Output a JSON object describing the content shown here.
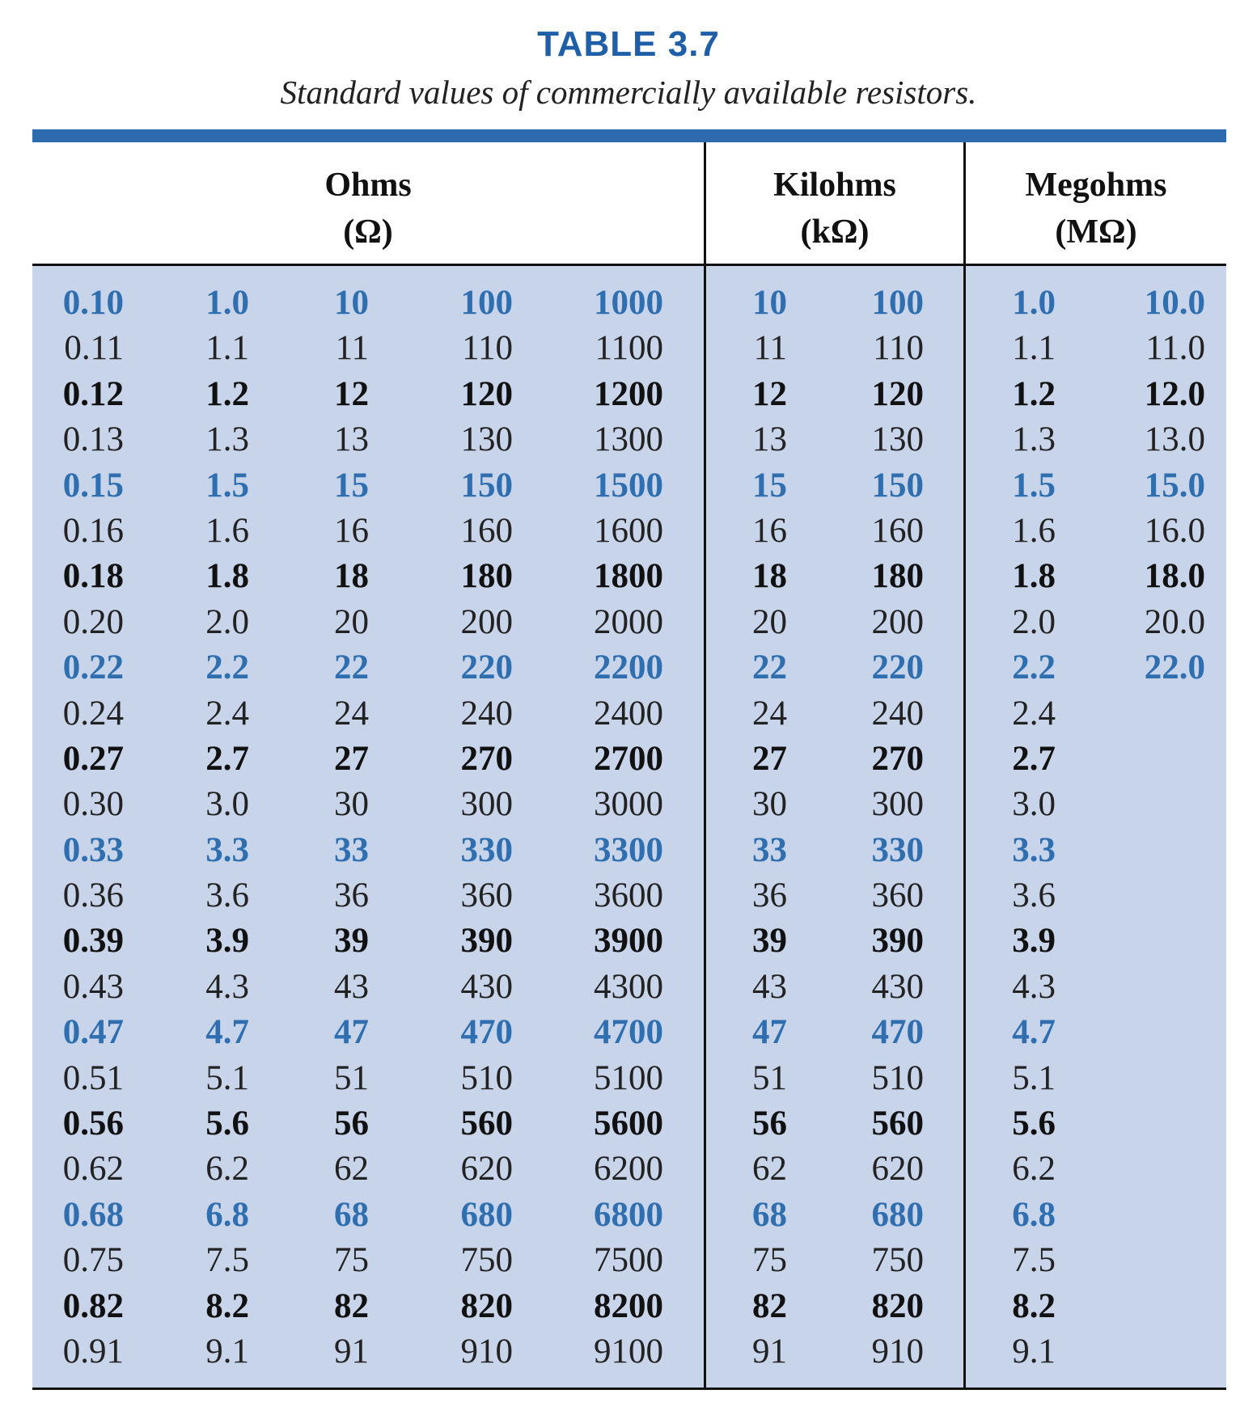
{
  "title": "TABLE 3.7",
  "caption": "Standard values of commercially available resistors.",
  "headers": [
    {
      "name": "Ohms",
      "unit": "(Ω)"
    },
    {
      "name": "Kilohms",
      "unit": "(kΩ)"
    },
    {
      "name": "Megohms",
      "unit": "(MΩ)"
    }
  ],
  "row_styles": [
    "blue",
    "plain",
    "bold",
    "plain",
    "blue",
    "plain",
    "bold",
    "plain",
    "blue",
    "plain",
    "bold",
    "plain",
    "blue",
    "plain",
    "bold",
    "plain",
    "blue",
    "plain",
    "bold",
    "plain",
    "blue",
    "plain",
    "bold",
    "plain"
  ],
  "columns": [
    [
      "0.10",
      "0.11",
      "0.12",
      "0.13",
      "0.15",
      "0.16",
      "0.18",
      "0.20",
      "0.22",
      "0.24",
      "0.27",
      "0.30",
      "0.33",
      "0.36",
      "0.39",
      "0.43",
      "0.47",
      "0.51",
      "0.56",
      "0.62",
      "0.68",
      "0.75",
      "0.82",
      "0.91"
    ],
    [
      "1.0",
      "1.1",
      "1.2",
      "1.3",
      "1.5",
      "1.6",
      "1.8",
      "2.0",
      "2.2",
      "2.4",
      "2.7",
      "3.0",
      "3.3",
      "3.6",
      "3.9",
      "4.3",
      "4.7",
      "5.1",
      "5.6",
      "6.2",
      "6.8",
      "7.5",
      "8.2",
      "9.1"
    ],
    [
      "10",
      "11",
      "12",
      "13",
      "15",
      "16",
      "18",
      "20",
      "22",
      "24",
      "27",
      "30",
      "33",
      "36",
      "39",
      "43",
      "47",
      "51",
      "56",
      "62",
      "68",
      "75",
      "82",
      "91"
    ],
    [
      "100",
      "110",
      "120",
      "130",
      "150",
      "160",
      "180",
      "200",
      "220",
      "240",
      "270",
      "300",
      "330",
      "360",
      "390",
      "430",
      "470",
      "510",
      "560",
      "620",
      "680",
      "750",
      "820",
      "910"
    ],
    [
      "1000",
      "1100",
      "1200",
      "1300",
      "1500",
      "1600",
      "1800",
      "2000",
      "2200",
      "2400",
      "2700",
      "3000",
      "3300",
      "3600",
      "3900",
      "4300",
      "4700",
      "5100",
      "5600",
      "6200",
      "6800",
      "7500",
      "8200",
      "9100"
    ],
    [
      "10",
      "11",
      "12",
      "13",
      "15",
      "16",
      "18",
      "20",
      "22",
      "24",
      "27",
      "30",
      "33",
      "36",
      "39",
      "43",
      "47",
      "51",
      "56",
      "62",
      "68",
      "75",
      "82",
      "91"
    ],
    [
      "100",
      "110",
      "120",
      "130",
      "150",
      "160",
      "180",
      "200",
      "220",
      "240",
      "270",
      "300",
      "330",
      "360",
      "390",
      "430",
      "470",
      "510",
      "560",
      "620",
      "680",
      "750",
      "820",
      "910"
    ],
    [
      "1.0",
      "1.1",
      "1.2",
      "1.3",
      "1.5",
      "1.6",
      "1.8",
      "2.0",
      "2.2",
      "2.4",
      "2.7",
      "3.0",
      "3.3",
      "3.6",
      "3.9",
      "4.3",
      "4.7",
      "5.1",
      "5.6",
      "6.2",
      "6.8",
      "7.5",
      "8.2",
      "9.1"
    ],
    [
      "10.0",
      "11.0",
      "12.0",
      "13.0",
      "15.0",
      "16.0",
      "18.0",
      "20.0",
      "22.0"
    ]
  ]
}
